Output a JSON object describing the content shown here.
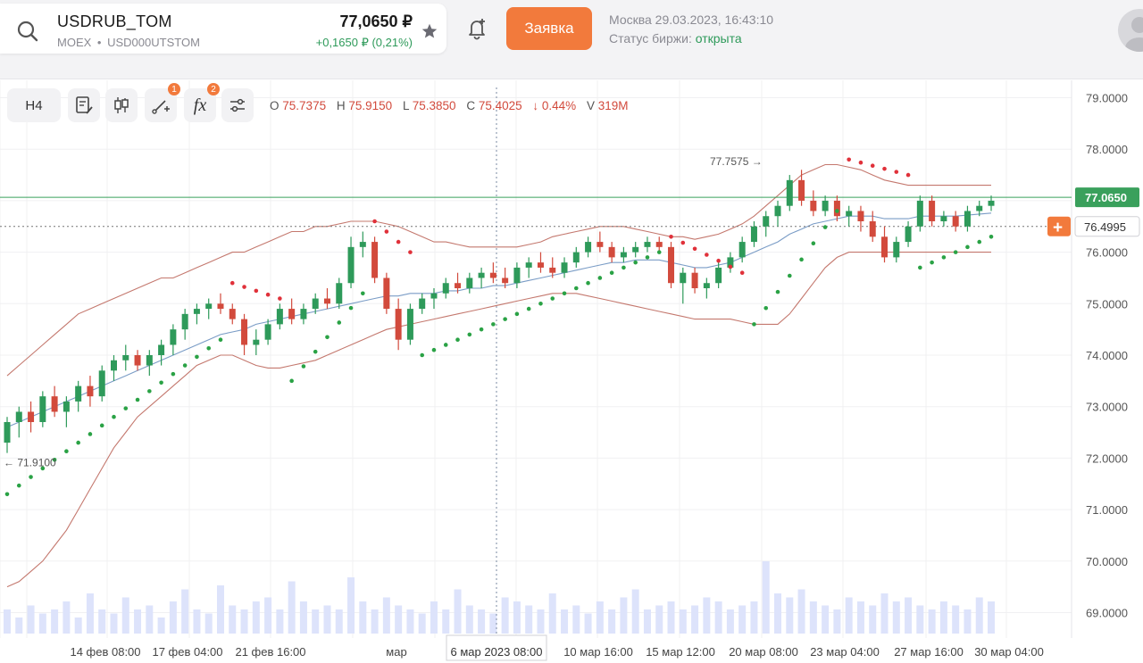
{
  "header": {
    "ticker": "USDRUB_TOM",
    "exchange": "MOEX",
    "separator": "•",
    "code": "USD000UTSTOM",
    "price": "77,0650 ₽",
    "change": "+0,1650 ₽ (0,21%)",
    "order_button": "Заявка",
    "datetime": "Москва 29.03.2023, 16:43:10",
    "status_label": "Статус биржи:",
    "status_value": "открыта"
  },
  "toolbar": {
    "timeframe": "H4",
    "indicator_badge": "1",
    "fx_badge": "2",
    "fx_label": "fx"
  },
  "ohlc": {
    "o_label": "O",
    "o": "75.7375",
    "h_label": "H",
    "h": "75.9150",
    "l_label": "L",
    "l": "75.3850",
    "c_label": "C",
    "c": "75.4025",
    "change": "↓ 0.44%",
    "v_label": "V",
    "v": "319M"
  },
  "chart_data": {
    "type": "candlestick",
    "y_ticks": [
      "79.0000",
      "78.0000",
      "77.0000",
      "76.0000",
      "75.0000",
      "74.0000",
      "73.0000",
      "72.0000",
      "71.0000",
      "70.0000",
      "69.0000"
    ],
    "ylim": [
      68.8,
      79.2
    ],
    "x_ticks": [
      "14 фев 08:00",
      "17 фев 04:00",
      "21 фев 16:00",
      "мар",
      "6 мар 2023 08:00",
      "10 мар 16:00",
      "15 мар 12:00",
      "20 мар 08:00",
      "23 мар 04:00",
      "27 мар 16:00",
      "30 мар 04:00"
    ],
    "last_price_label": "77.0650",
    "last_price": 77.065,
    "crosshair_price_label": "76.4995",
    "crosshair_price": 76.4995,
    "crosshair_time_label": "6 мар 2023 08:00",
    "high_annotation": "77.7575",
    "low_annotation": "71.9100",
    "colors": {
      "up": "#2e9a5a",
      "down": "#d24a3c",
      "ma": "#7a9cc6",
      "bollinger": "#c4786e",
      "volume": "#dde3fb",
      "psar_up": "#2aa245",
      "psar_down": "#e0313a",
      "last_price": "#3aa05c"
    },
    "candles": [
      [
        72.3,
        72.8,
        72.1,
        72.7
      ],
      [
        72.7,
        73.0,
        72.4,
        72.9
      ],
      [
        72.9,
        73.1,
        72.5,
        72.7
      ],
      [
        72.7,
        73.3,
        72.6,
        73.2
      ],
      [
        73.2,
        73.4,
        72.8,
        72.9
      ],
      [
        72.9,
        73.2,
        72.6,
        73.1
      ],
      [
        73.1,
        73.5,
        72.9,
        73.4
      ],
      [
        73.4,
        73.6,
        73.0,
        73.2
      ],
      [
        73.2,
        73.8,
        73.1,
        73.7
      ],
      [
        73.7,
        74.0,
        73.5,
        73.9
      ],
      [
        73.9,
        74.2,
        73.7,
        74.0
      ],
      [
        74.0,
        74.1,
        73.7,
        73.8
      ],
      [
        73.8,
        74.1,
        73.6,
        74.0
      ],
      [
        74.0,
        74.3,
        73.8,
        74.2
      ],
      [
        74.2,
        74.6,
        74.0,
        74.5
      ],
      [
        74.5,
        74.9,
        74.3,
        74.8
      ],
      [
        74.8,
        75.0,
        74.6,
        74.9
      ],
      [
        74.9,
        75.1,
        74.7,
        75.0
      ],
      [
        75.0,
        75.2,
        74.8,
        74.9
      ],
      [
        74.9,
        75.0,
        74.6,
        74.7
      ],
      [
        74.7,
        74.8,
        74.0,
        74.2
      ],
      [
        74.2,
        74.5,
        74.0,
        74.3
      ],
      [
        74.3,
        74.7,
        74.2,
        74.6
      ],
      [
        74.6,
        75.0,
        74.5,
        74.9
      ],
      [
        74.9,
        75.1,
        74.6,
        74.7
      ],
      [
        74.7,
        75.0,
        74.6,
        74.9
      ],
      [
        74.9,
        75.2,
        74.8,
        75.1
      ],
      [
        75.1,
        75.3,
        74.9,
        75.0
      ],
      [
        75.0,
        75.5,
        74.9,
        75.4
      ],
      [
        75.4,
        76.3,
        75.3,
        76.1
      ],
      [
        76.1,
        76.4,
        75.9,
        76.2
      ],
      [
        76.2,
        76.3,
        75.4,
        75.5
      ],
      [
        75.5,
        75.6,
        74.8,
        74.9
      ],
      [
        74.9,
        75.1,
        74.1,
        74.3
      ],
      [
        74.3,
        75.0,
        74.2,
        74.9
      ],
      [
        74.9,
        75.2,
        74.8,
        75.1
      ],
      [
        75.1,
        75.3,
        74.9,
        75.2
      ],
      [
        75.2,
        75.5,
        75.1,
        75.4
      ],
      [
        75.4,
        75.6,
        75.2,
        75.3
      ],
      [
        75.3,
        75.6,
        75.2,
        75.5
      ],
      [
        75.5,
        75.7,
        75.3,
        75.6
      ],
      [
        75.6,
        75.8,
        75.4,
        75.5
      ],
      [
        75.5,
        75.7,
        75.3,
        75.4
      ],
      [
        75.4,
        75.8,
        75.3,
        75.7
      ],
      [
        75.7,
        75.9,
        75.5,
        75.8
      ],
      [
        75.8,
        76.0,
        75.6,
        75.7
      ],
      [
        75.7,
        75.9,
        75.5,
        75.6
      ],
      [
        75.6,
        75.9,
        75.5,
        75.8
      ],
      [
        75.8,
        76.1,
        75.7,
        76.0
      ],
      [
        76.0,
        76.3,
        75.9,
        76.2
      ],
      [
        76.2,
        76.4,
        76.0,
        76.1
      ],
      [
        76.1,
        76.2,
        75.8,
        75.9
      ],
      [
        75.9,
        76.1,
        75.8,
        76.0
      ],
      [
        76.0,
        76.2,
        75.9,
        76.1
      ],
      [
        76.1,
        76.3,
        76.0,
        76.2
      ],
      [
        76.2,
        76.3,
        76.0,
        76.1
      ],
      [
        76.1,
        76.2,
        75.3,
        75.4
      ],
      [
        75.4,
        75.7,
        75.0,
        75.6
      ],
      [
        75.6,
        75.7,
        75.2,
        75.3
      ],
      [
        75.3,
        75.5,
        75.1,
        75.4
      ],
      [
        75.4,
        75.8,
        75.3,
        75.7
      ],
      [
        75.7,
        76.0,
        75.6,
        75.9
      ],
      [
        75.9,
        76.3,
        75.8,
        76.2
      ],
      [
        76.2,
        76.6,
        76.1,
        76.5
      ],
      [
        76.5,
        76.8,
        76.3,
        76.7
      ],
      [
        76.7,
        77.0,
        76.5,
        76.9
      ],
      [
        76.9,
        77.5,
        76.8,
        77.4
      ],
      [
        77.4,
        77.6,
        76.9,
        77.0
      ],
      [
        77.0,
        77.2,
        76.7,
        76.8
      ],
      [
        76.8,
        77.1,
        76.7,
        77.0
      ],
      [
        77.0,
        77.1,
        76.6,
        76.7
      ],
      [
        76.7,
        76.9,
        76.5,
        76.8
      ],
      [
        76.8,
        76.9,
        76.4,
        76.6
      ],
      [
        76.6,
        76.8,
        76.2,
        76.3
      ],
      [
        76.3,
        76.5,
        75.8,
        75.9
      ],
      [
        75.9,
        76.3,
        75.8,
        76.2
      ],
      [
        76.2,
        76.6,
        76.1,
        76.5
      ],
      [
        76.5,
        77.1,
        76.4,
        77.0
      ],
      [
        77.0,
        77.1,
        76.5,
        76.6
      ],
      [
        76.6,
        76.8,
        76.5,
        76.7
      ],
      [
        76.7,
        76.8,
        76.4,
        76.5
      ],
      [
        76.5,
        76.9,
        76.4,
        76.8
      ],
      [
        76.8,
        77.0,
        76.7,
        76.9
      ],
      [
        76.9,
        77.1,
        76.8,
        77.0
      ]
    ],
    "volumes": [
      0.3,
      0.2,
      0.35,
      0.25,
      0.3,
      0.4,
      0.2,
      0.5,
      0.3,
      0.25,
      0.45,
      0.3,
      0.35,
      0.2,
      0.4,
      0.55,
      0.3,
      0.25,
      0.6,
      0.35,
      0.3,
      0.4,
      0.45,
      0.3,
      0.65,
      0.4,
      0.3,
      0.35,
      0.3,
      0.7,
      0.4,
      0.3,
      0.45,
      0.35,
      0.3,
      0.25,
      0.4,
      0.3,
      0.55,
      0.35,
      0.3,
      0.25,
      0.45,
      0.4,
      0.35,
      0.3,
      0.5,
      0.3,
      0.35,
      0.25,
      0.4,
      0.3,
      0.45,
      0.55,
      0.3,
      0.35,
      0.4,
      0.3,
      0.35,
      0.45,
      0.4,
      0.3,
      0.35,
      0.4,
      0.9,
      0.5,
      0.45,
      0.55,
      0.4,
      0.35,
      0.3,
      0.45,
      0.4,
      0.35,
      0.5,
      0.4,
      0.45,
      0.35,
      0.3,
      0.4,
      0.35,
      0.3,
      0.45,
      0.4
    ],
    "ma": [
      72.6,
      72.7,
      72.8,
      72.9,
      73.0,
      73.1,
      73.2,
      73.3,
      73.4,
      73.5,
      73.6,
      73.7,
      73.8,
      73.9,
      74.0,
      74.1,
      74.2,
      74.3,
      74.4,
      74.45,
      74.5,
      74.6,
      74.65,
      74.7,
      74.75,
      74.8,
      74.85,
      74.9,
      74.95,
      75.0,
      75.05,
      75.1,
      75.15,
      75.15,
      75.2,
      75.2,
      75.2,
      75.25,
      75.25,
      75.3,
      75.3,
      75.35,
      75.35,
      75.4,
      75.45,
      75.5,
      75.55,
      75.6,
      75.65,
      75.7,
      75.75,
      75.8,
      75.8,
      75.85,
      75.85,
      75.85,
      75.8,
      75.75,
      75.7,
      75.7,
      75.75,
      75.8,
      75.9,
      76.0,
      76.1,
      76.2,
      76.35,
      76.45,
      76.55,
      76.6,
      76.65,
      76.7,
      76.7,
      76.7,
      76.65,
      76.65,
      76.65,
      76.7,
      76.7,
      76.7,
      76.7,
      76.72,
      76.74,
      76.76
    ],
    "bb_upper": [
      73.6,
      73.8,
      74.0,
      74.2,
      74.4,
      74.6,
      74.8,
      74.9,
      75.0,
      75.1,
      75.2,
      75.3,
      75.4,
      75.5,
      75.5,
      75.6,
      75.7,
      75.8,
      75.9,
      76.0,
      76.0,
      76.1,
      76.2,
      76.3,
      76.4,
      76.4,
      76.5,
      76.5,
      76.55,
      76.6,
      76.6,
      76.6,
      76.55,
      76.5,
      76.4,
      76.3,
      76.2,
      76.2,
      76.15,
      76.1,
      76.1,
      76.1,
      76.1,
      76.1,
      76.15,
      76.2,
      76.3,
      76.35,
      76.4,
      76.45,
      76.5,
      76.5,
      76.5,
      76.45,
      76.4,
      76.35,
      76.3,
      76.3,
      76.25,
      76.3,
      76.35,
      76.45,
      76.55,
      76.7,
      76.9,
      77.1,
      77.3,
      77.5,
      77.6,
      77.7,
      77.7,
      77.65,
      77.6,
      77.5,
      77.4,
      77.35,
      77.3,
      77.3,
      77.3,
      77.3,
      77.3,
      77.3,
      77.3,
      77.3
    ],
    "bb_lower": [
      69.5,
      69.6,
      69.8,
      70.0,
      70.3,
      70.6,
      71.0,
      71.4,
      71.8,
      72.2,
      72.5,
      72.8,
      73.0,
      73.2,
      73.4,
      73.6,
      73.8,
      73.9,
      74.0,
      74.0,
      73.9,
      73.8,
      73.75,
      73.75,
      73.8,
      73.85,
      73.9,
      74.0,
      74.1,
      74.2,
      74.3,
      74.4,
      74.5,
      74.55,
      74.6,
      74.65,
      74.7,
      74.75,
      74.8,
      74.85,
      74.9,
      74.95,
      75.0,
      75.05,
      75.1,
      75.15,
      75.2,
      75.2,
      75.2,
      75.15,
      75.1,
      75.05,
      75.0,
      74.95,
      74.9,
      74.85,
      74.8,
      74.75,
      74.7,
      74.7,
      74.7,
      74.7,
      74.65,
      74.6,
      74.6,
      74.6,
      74.8,
      75.1,
      75.4,
      75.7,
      75.9,
      76.0,
      76.0,
      76.0,
      76.0,
      76.0,
      76.0,
      76.0,
      76.0,
      76.0,
      76.0,
      76.0,
      76.0,
      76.0
    ],
    "psar": [
      {
        "from": 0,
        "to": 18,
        "dir": "up",
        "start": 71.3,
        "end": 74.3
      },
      {
        "from": 19,
        "to": 23,
        "dir": "down",
        "start": 75.4,
        "end": 75.1
      },
      {
        "from": 24,
        "to": 30,
        "dir": "up",
        "start": 73.5,
        "end": 75.2
      },
      {
        "from": 31,
        "to": 34,
        "dir": "down",
        "start": 76.6,
        "end": 76.0
      },
      {
        "from": 35,
        "to": 55,
        "dir": "up",
        "start": 74.0,
        "end": 76.0
      },
      {
        "from": 56,
        "to": 62,
        "dir": "down",
        "start": 76.3,
        "end": 75.6
      },
      {
        "from": 63,
        "to": 70,
        "dir": "up",
        "start": 74.6,
        "end": 76.8
      },
      {
        "from": 71,
        "to": 76,
        "dir": "down",
        "start": 77.8,
        "end": 77.5
      },
      {
        "from": 77,
        "to": 83,
        "dir": "up",
        "start": 75.7,
        "end": 76.3
      }
    ]
  }
}
